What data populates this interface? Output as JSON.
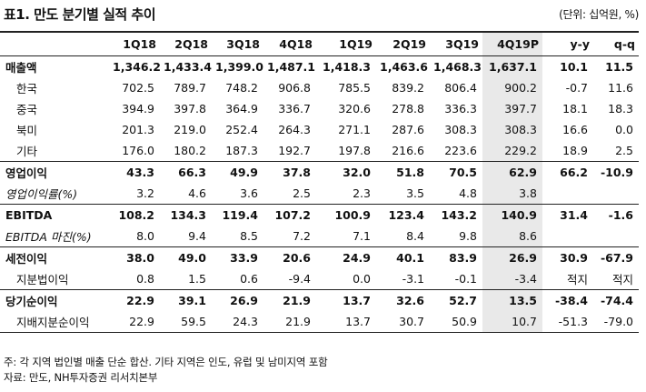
{
  "title": "표1. 만도 분기별 실적 추이",
  "unit": "(단위: 십억원, %)",
  "columns": [
    "",
    "1Q18",
    "2Q18",
    "3Q18",
    "4Q18",
    "1Q19",
    "2Q19",
    "3Q19",
    "4Q19P",
    "y-y",
    "q-q"
  ],
  "rows": [
    {
      "label": "매출액",
      "type": "main first",
      "values": [
        "1,346.2",
        "1,433.4",
        "1,399.0",
        "1,487.1",
        "1,418.3",
        "1,463.6",
        "1,468.3",
        "1,637.1",
        "10.1",
        "11.5"
      ]
    },
    {
      "label": "한국",
      "type": "sub",
      "values": [
        "702.5",
        "789.7",
        "748.2",
        "906.8",
        "785.5",
        "839.2",
        "806.4",
        "900.2",
        "-0.7",
        "11.6"
      ]
    },
    {
      "label": "중국",
      "type": "sub",
      "values": [
        "394.9",
        "397.8",
        "364.9",
        "336.7",
        "320.6",
        "278.8",
        "336.3",
        "397.7",
        "18.1",
        "18.3"
      ]
    },
    {
      "label": "북미",
      "type": "sub",
      "values": [
        "201.3",
        "219.0",
        "252.4",
        "264.3",
        "271.1",
        "287.6",
        "308.3",
        "308.3",
        "16.6",
        "0.0"
      ]
    },
    {
      "label": "기타",
      "type": "sub",
      "values": [
        "176.0",
        "180.2",
        "187.3",
        "192.7",
        "197.8",
        "216.6",
        "223.6",
        "229.2",
        "18.9",
        "2.5"
      ]
    },
    {
      "label": "영업이익",
      "type": "main",
      "values": [
        "43.3",
        "66.3",
        "49.9",
        "37.8",
        "32.0",
        "51.8",
        "70.5",
        "62.9",
        "66.2",
        "-10.9"
      ]
    },
    {
      "label": "영업이익률(%)",
      "type": "ital",
      "values": [
        "3.2",
        "4.6",
        "3.6",
        "2.5",
        "2.3",
        "3.5",
        "4.8",
        "3.8",
        "",
        ""
      ]
    },
    {
      "label": "EBITDA",
      "type": "main",
      "values": [
        "108.2",
        "134.3",
        "119.4",
        "107.2",
        "100.9",
        "123.4",
        "143.2",
        "140.9",
        "31.4",
        "-1.6"
      ]
    },
    {
      "label": "EBITDA 마진(%)",
      "type": "ital",
      "values": [
        "8.0",
        "9.4",
        "8.5",
        "7.2",
        "7.1",
        "8.4",
        "9.8",
        "8.6",
        "",
        ""
      ]
    },
    {
      "label": "세전이익",
      "type": "main",
      "values": [
        "38.0",
        "49.0",
        "33.9",
        "20.6",
        "24.9",
        "40.1",
        "83.9",
        "26.9",
        "30.9",
        "-67.9"
      ]
    },
    {
      "label": "지분법이익",
      "type": "sub",
      "values": [
        "0.8",
        "1.5",
        "0.6",
        "-9.4",
        "0.0",
        "-3.1",
        "-0.1",
        "-3.4",
        "적지",
        "적지"
      ]
    },
    {
      "label": "당기순이익",
      "type": "main",
      "values": [
        "22.9",
        "39.1",
        "26.9",
        "21.9",
        "13.7",
        "32.6",
        "52.7",
        "13.5",
        "-38.4",
        "-74.4"
      ]
    },
    {
      "label": "지배지분순이익",
      "type": "sub lastrow",
      "values": [
        "22.9",
        "59.5",
        "24.3",
        "21.9",
        "13.7",
        "30.7",
        "50.9",
        "10.7",
        "-51.3",
        "-79.0"
      ]
    }
  ],
  "notes": [
    "주: 각 지역 법인별 매출 단순 합산. 기타 지역은 인도, 유럽 및 남미지역 포함",
    "자료: 만도, NH투자증권 리서치본부"
  ]
}
